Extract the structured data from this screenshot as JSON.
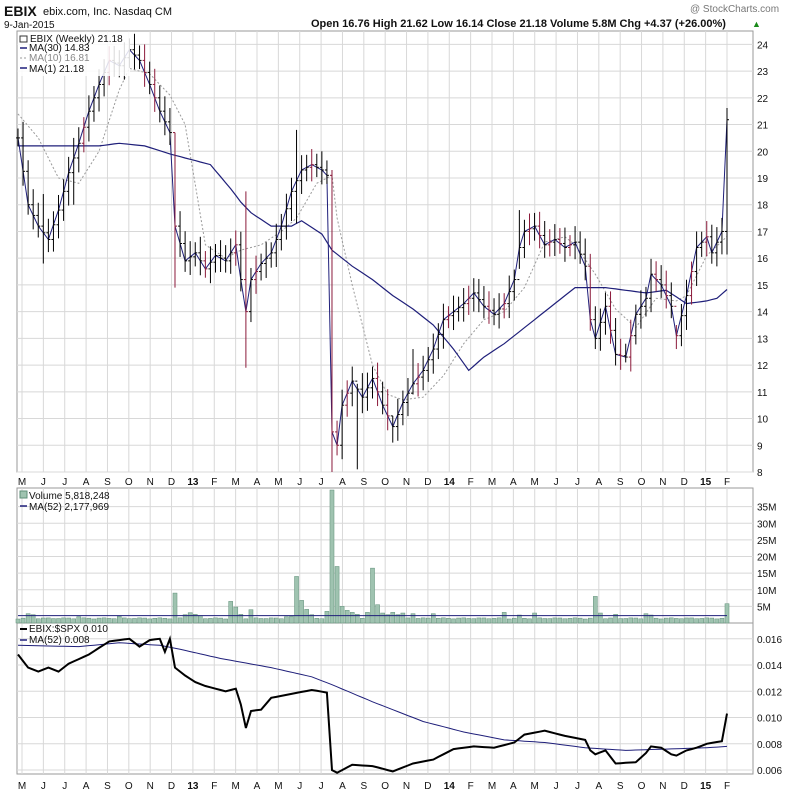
{
  "header": {
    "symbol": "EBIX",
    "company": "ebix.com, Inc.  Nasdaq CM",
    "date": "9-Jan-2015",
    "quote": "Open 16.76  High 21.62  Low 16.14  Close 21.18  Volume 5.8M  Chg +4.37 (+26.00%)",
    "quote_arrow": "▲",
    "watermark": "@ StockCharts.com"
  },
  "colors": {
    "background": "#ffffff",
    "grid": "#d8d8d8",
    "frame": "#9a9a9a",
    "price_up": "#000000",
    "price_down": "#8b1a3a",
    "ma30": "#1f1f7a",
    "ma10": "#9a9a9a",
    "ma1": "#1f1f7a",
    "volume_bar": "#9fc3b0",
    "volume_bar_edge": "#5f8f78",
    "ratio_line": "#000000",
    "ratio_ma": "#1f1f7a"
  },
  "chart_data": [
    {
      "type": "ohlc",
      "legend": {
        "main": "EBIX (Weekly) 21.18",
        "ma30": "MA(30) 14.83",
        "ma10": "MA(10) 16.81",
        "ma1": "MA(1) 21.18"
      },
      "ylim": [
        8,
        24.5
      ],
      "y_ticks": [
        8,
        9,
        10,
        11,
        12,
        13,
        14,
        15,
        16,
        17,
        18,
        19,
        20,
        21,
        22,
        23,
        24
      ],
      "x_labels": [
        "M",
        "J",
        "J",
        "A",
        "S",
        "O",
        "N",
        "D",
        "13",
        "F",
        "M",
        "A",
        "M",
        "J",
        "J",
        "A",
        "S",
        "O",
        "N",
        "D",
        "14",
        "F",
        "M",
        "A",
        "M",
        "J",
        "J",
        "A",
        "S",
        "O",
        "N",
        "D",
        "15",
        "F"
      ],
      "bold_x_labels": [
        "13",
        "14",
        "15"
      ],
      "weeks": 141,
      "close_anchors": [
        [
          0,
          20.5
        ],
        [
          2,
          18
        ],
        [
          4,
          17.2
        ],
        [
          6,
          16.7
        ],
        [
          8,
          17.8
        ],
        [
          10,
          19.2
        ],
        [
          12,
          20.3
        ],
        [
          14,
          21.5
        ],
        [
          16,
          22.5
        ],
        [
          18,
          23.4
        ],
        [
          20,
          23.2
        ],
        [
          22,
          23.8
        ],
        [
          24,
          23.4
        ],
        [
          26,
          22.5
        ],
        [
          28,
          21.5
        ],
        [
          29,
          21.1
        ],
        [
          30,
          20.7
        ],
        [
          31,
          17.2
        ],
        [
          33,
          15.9
        ],
        [
          35,
          16.2
        ],
        [
          37,
          15.6
        ],
        [
          39,
          16.1
        ],
        [
          41,
          15.9
        ],
        [
          43,
          16.5
        ],
        [
          44,
          15.2
        ],
        [
          45,
          14
        ],
        [
          46,
          15.2
        ],
        [
          48,
          15.8
        ],
        [
          50,
          16.2
        ],
        [
          52,
          17.2
        ],
        [
          54,
          18.5
        ],
        [
          56,
          19.3
        ],
        [
          58,
          19.5
        ],
        [
          60,
          19.3
        ],
        [
          61,
          19.1
        ],
        [
          62,
          9.5
        ],
        [
          63,
          9
        ],
        [
          64,
          10.5
        ],
        [
          66,
          11.4
        ],
        [
          68,
          10.8
        ],
        [
          70,
          11.5
        ],
        [
          72,
          10.5
        ],
        [
          74,
          9.7
        ],
        [
          76,
          10.6
        ],
        [
          78,
          11.3
        ],
        [
          80,
          11.8
        ],
        [
          82,
          12.6
        ],
        [
          84,
          13.7
        ],
        [
          86,
          14
        ],
        [
          88,
          14.3
        ],
        [
          90,
          14.7
        ],
        [
          92,
          14.2
        ],
        [
          94,
          13.9
        ],
        [
          96,
          14.3
        ],
        [
          98,
          15.2
        ],
        [
          99,
          16.4
        ],
        [
          100,
          17
        ],
        [
          102,
          17.2
        ],
        [
          104,
          16.5
        ],
        [
          106,
          16.7
        ],
        [
          108,
          16.4
        ],
        [
          110,
          16.6
        ],
        [
          112,
          15.7
        ],
        [
          113,
          13.7
        ],
        [
          114,
          13
        ],
        [
          116,
          14.2
        ],
        [
          118,
          12.4
        ],
        [
          120,
          12.3
        ],
        [
          122,
          13.9
        ],
        [
          124,
          14.5
        ],
        [
          125,
          15.4
        ],
        [
          127,
          15
        ],
        [
          129,
          14.2
        ],
        [
          130,
          13.1
        ],
        [
          132,
          14.6
        ],
        [
          134,
          16.4
        ],
        [
          136,
          16.8
        ],
        [
          137,
          16.2
        ],
        [
          139,
          17
        ],
        [
          140,
          21.18
        ]
      ],
      "ma30_anchors": [
        [
          0,
          20.2
        ],
        [
          3,
          20.2
        ],
        [
          16,
          20.2
        ],
        [
          20,
          20.3
        ],
        [
          25,
          20.2
        ],
        [
          30,
          19.9
        ],
        [
          34,
          19.7
        ],
        [
          38,
          19.5
        ],
        [
          42,
          18.6
        ],
        [
          44,
          18.1
        ],
        [
          46,
          17.7
        ],
        [
          50,
          17.2
        ],
        [
          54,
          17.2
        ],
        [
          56,
          17.4
        ],
        [
          60,
          16.9
        ],
        [
          62,
          16.3
        ],
        [
          66,
          15.7
        ],
        [
          70,
          15.2
        ],
        [
          74,
          14.6
        ],
        [
          78,
          14.1
        ],
        [
          82,
          13.5
        ],
        [
          86,
          12.6
        ],
        [
          89,
          11.8
        ],
        [
          92,
          12.3
        ],
        [
          96,
          12.8
        ],
        [
          100,
          13.4
        ],
        [
          104,
          14
        ],
        [
          108,
          14.6
        ],
        [
          110,
          14.9
        ],
        [
          116,
          14.9
        ],
        [
          120,
          14.8
        ],
        [
          124,
          14.7
        ],
        [
          128,
          14.8
        ],
        [
          132,
          14.3
        ],
        [
          136,
          14.4
        ],
        [
          138,
          14.5
        ],
        [
          140,
          14.83
        ]
      ],
      "ma10_anchors": [
        [
          0,
          21.4
        ],
        [
          4,
          20.5
        ],
        [
          8,
          19
        ],
        [
          12,
          18.8
        ],
        [
          16,
          20
        ],
        [
          20,
          22.3
        ],
        [
          22,
          23.1
        ],
        [
          26,
          22.9
        ],
        [
          28,
          22.5
        ],
        [
          30,
          22.1
        ],
        [
          33,
          21
        ],
        [
          37,
          16.5
        ],
        [
          41,
          16
        ],
        [
          44,
          16.3
        ],
        [
          48,
          16.5
        ],
        [
          52,
          17
        ],
        [
          55,
          17.5
        ],
        [
          59,
          18.8
        ],
        [
          62,
          19.1
        ],
        [
          63,
          17.5
        ],
        [
          66,
          15
        ],
        [
          70,
          12
        ],
        [
          73,
          10.9
        ],
        [
          76,
          10.7
        ],
        [
          80,
          10.8
        ],
        [
          84,
          11.6
        ],
        [
          88,
          12.8
        ],
        [
          92,
          13.7
        ],
        [
          96,
          14
        ],
        [
          100,
          14.9
        ],
        [
          104,
          16.6
        ],
        [
          108,
          16.8
        ],
        [
          110,
          16.5
        ],
        [
          114,
          15.4
        ],
        [
          118,
          14.1
        ],
        [
          122,
          13.4
        ],
        [
          126,
          14.5
        ],
        [
          130,
          14.4
        ],
        [
          132,
          14.6
        ],
        [
          136,
          16.1
        ],
        [
          140,
          16.81
        ]
      ],
      "down_weeks": [
        13,
        18,
        25,
        27,
        31,
        37,
        43,
        45,
        47,
        58,
        62,
        63,
        65,
        71,
        73,
        79,
        85,
        89,
        93,
        96,
        101,
        103,
        105,
        107,
        109,
        113,
        117,
        119,
        121,
        126,
        128,
        130,
        133,
        136
      ],
      "spikes": {
        "5": [
          15.8,
          18.4
        ],
        "11": [
          18,
          20.5
        ],
        "31": [
          14.9,
          20.7
        ],
        "45": [
          11.9,
          18.5
        ],
        "55": [
          17.3,
          20.8
        ],
        "62": [
          8,
          19.3
        ],
        "67": [
          8.1,
          11.3
        ],
        "68": [
          10.2,
          11.7
        ],
        "74": [
          9.1,
          10.1
        ],
        "78": [
          10.9,
          12.6
        ],
        "99": [
          15.6,
          17.8
        ],
        "114": [
          12.6,
          14.2
        ],
        "120": [
          12.1,
          12.8
        ],
        "130": [
          12.6,
          13.5
        ],
        "140": [
          16.14,
          21.62
        ]
      }
    },
    {
      "type": "bar",
      "legend": {
        "main": "Volume 5,818,248",
        "ma": "MA(52) 2,177,969"
      },
      "ylim": [
        0,
        40
      ],
      "y_ticks": [
        5,
        10,
        15,
        20,
        25,
        30,
        35
      ],
      "y_tick_labels": [
        "5M",
        "10M",
        "15M",
        "20M",
        "25M",
        "30M",
        "35M"
      ],
      "base_level": 1.2,
      "ma_level": 2.2,
      "spikes_m": {
        "2": 2.8,
        "3": 2.5,
        "12": 1.9,
        "20": 2.0,
        "31": 9.0,
        "33": 2.5,
        "34": 3.1,
        "35": 2.6,
        "36": 2.2,
        "42": 6.5,
        "43": 4.8,
        "44": 2.6,
        "46": 4.0,
        "53": 1.9,
        "54": 2.0,
        "55": 14.0,
        "56": 6.8,
        "57": 4.1,
        "58": 2.5,
        "61": 3.5,
        "62": 40.0,
        "63": 17.0,
        "64": 5.0,
        "65": 3.8,
        "66": 3.2,
        "67": 2.6,
        "69": 3.2,
        "70": 16.5,
        "71": 5.5,
        "72": 3.0,
        "73": 2.5,
        "74": 3.2,
        "75": 2.5,
        "76": 3.0,
        "78": 2.8,
        "82": 2.8,
        "96": 3.2,
        "99": 2.4,
        "102": 3.0,
        "114": 8.0,
        "115": 3.0,
        "118": 2.6,
        "124": 2.8,
        "125": 2.4,
        "140": 5.8
      }
    },
    {
      "type": "line",
      "legend": {
        "main": "EBIX:$SPX 0.010",
        "ma": "MA(52) 0.008"
      },
      "ylim": [
        0.0057,
        0.0172
      ],
      "y_ticks": [
        0.006,
        0.008,
        0.01,
        0.012,
        0.014,
        0.016
      ],
      "y_tick_labels": [
        "0.006",
        "0.008",
        "0.010",
        "0.012",
        "0.014",
        "0.016"
      ],
      "ratio_anchors": [
        [
          0,
          0.0148
        ],
        [
          2,
          0.0138
        ],
        [
          4,
          0.0135
        ],
        [
          6,
          0.0138
        ],
        [
          8,
          0.0135
        ],
        [
          10,
          0.0141
        ],
        [
          14,
          0.0148
        ],
        [
          18,
          0.0158
        ],
        [
          22,
          0.016
        ],
        [
          24,
          0.0154
        ],
        [
          26,
          0.0159
        ],
        [
          28,
          0.016
        ],
        [
          29,
          0.015
        ],
        [
          30,
          0.016
        ],
        [
          31,
          0.0138
        ],
        [
          33,
          0.0132
        ],
        [
          35,
          0.0127
        ],
        [
          37,
          0.0124
        ],
        [
          39,
          0.0122
        ],
        [
          41,
          0.012
        ],
        [
          43,
          0.0122
        ],
        [
          44,
          0.011
        ],
        [
          45,
          0.0092
        ],
        [
          46,
          0.0105
        ],
        [
          48,
          0.0106
        ],
        [
          50,
          0.0115
        ],
        [
          54,
          0.0118
        ],
        [
          58,
          0.0121
        ],
        [
          61,
          0.0119
        ],
        [
          62,
          0.006
        ],
        [
          63,
          0.0058
        ],
        [
          66,
          0.0064
        ],
        [
          70,
          0.0063
        ],
        [
          74,
          0.0059
        ],
        [
          78,
          0.0065
        ],
        [
          82,
          0.0068
        ],
        [
          86,
          0.0076
        ],
        [
          90,
          0.0078
        ],
        [
          94,
          0.0077
        ],
        [
          98,
          0.0081
        ],
        [
          100,
          0.0087
        ],
        [
          104,
          0.009
        ],
        [
          108,
          0.0086
        ],
        [
          112,
          0.0083
        ],
        [
          113,
          0.0075
        ],
        [
          114,
          0.0072
        ],
        [
          116,
          0.0075
        ],
        [
          118,
          0.0065
        ],
        [
          122,
          0.0066
        ],
        [
          124,
          0.0073
        ],
        [
          125,
          0.0078
        ],
        [
          127,
          0.0077
        ],
        [
          129,
          0.0072
        ],
        [
          130,
          0.0071
        ],
        [
          132,
          0.0075
        ],
        [
          134,
          0.0077
        ],
        [
          136,
          0.008
        ],
        [
          139,
          0.0082
        ],
        [
          140,
          0.0103
        ]
      ],
      "ma_anchors": [
        [
          0,
          0.0155
        ],
        [
          12,
          0.0154
        ],
        [
          20,
          0.0157
        ],
        [
          28,
          0.0155
        ],
        [
          32,
          0.0152
        ],
        [
          40,
          0.0145
        ],
        [
          50,
          0.0138
        ],
        [
          58,
          0.0131
        ],
        [
          62,
          0.0125
        ],
        [
          70,
          0.0112
        ],
        [
          80,
          0.0097
        ],
        [
          88,
          0.0089
        ],
        [
          96,
          0.0083
        ],
        [
          104,
          0.0081
        ],
        [
          112,
          0.0077
        ],
        [
          120,
          0.0075
        ],
        [
          128,
          0.0076
        ],
        [
          136,
          0.0077
        ],
        [
          140,
          0.0078
        ]
      ]
    }
  ]
}
